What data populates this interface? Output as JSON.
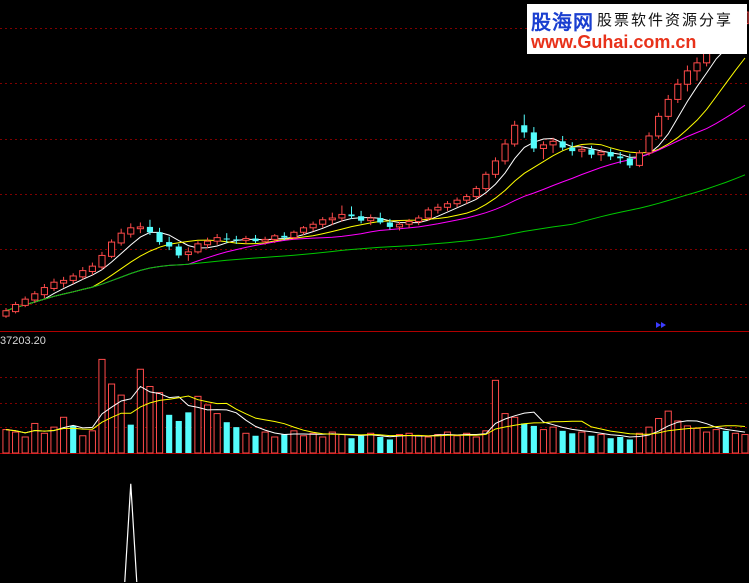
{
  "watermark": {
    "logo": "股海网",
    "slogan": "股票软件资源分享",
    "url": "www.Guhai.com.cn"
  },
  "volume_readout": "37203.20",
  "colors": {
    "background": "#000000",
    "up": "#ff4a4a",
    "down": "#54fcfc",
    "grid": "#800000",
    "ma_short": "#ffffff",
    "ma_mid": "#ffff00",
    "ma_long": "#ff00ff",
    "ma_longest": "#00c800",
    "indicator": "#ffffff"
  },
  "chart_data": [
    {
      "type": "candlestick",
      "title": "",
      "ohlc": [
        [
          5.0,
          5.9,
          4.8,
          5.6
        ],
        [
          5.5,
          6.6,
          5.3,
          6.3
        ],
        [
          6.2,
          7.2,
          6.0,
          6.9
        ],
        [
          6.8,
          7.8,
          6.5,
          7.5
        ],
        [
          7.4,
          8.6,
          7.0,
          8.2
        ],
        [
          8.1,
          9.2,
          7.8,
          8.8
        ],
        [
          8.7,
          9.4,
          8.2,
          9.0
        ],
        [
          9.0,
          9.8,
          8.6,
          9.5
        ],
        [
          9.4,
          10.5,
          9.1,
          10.1
        ],
        [
          10.0,
          11.0,
          9.6,
          10.6
        ],
        [
          10.5,
          12.2,
          10.2,
          11.8
        ],
        [
          11.7,
          13.6,
          11.5,
          13.3
        ],
        [
          13.2,
          14.8,
          12.9,
          14.3
        ],
        [
          14.2,
          15.4,
          13.8,
          14.9
        ],
        [
          14.8,
          15.5,
          14.3,
          15.0
        ],
        [
          15.0,
          15.8,
          14.1,
          14.4
        ],
        [
          14.4,
          14.9,
          13.0,
          13.3
        ],
        [
          13.3,
          13.9,
          12.4,
          12.8
        ],
        [
          12.8,
          13.1,
          11.5,
          11.8
        ],
        [
          11.9,
          12.7,
          11.2,
          12.2
        ],
        [
          12.2,
          13.4,
          12.0,
          13.1
        ],
        [
          13.0,
          13.8,
          12.6,
          13.4
        ],
        [
          13.4,
          14.2,
          13.0,
          13.8
        ],
        [
          13.7,
          14.3,
          13.2,
          13.6
        ],
        [
          13.6,
          14.0,
          13.1,
          13.5
        ],
        [
          13.5,
          14.0,
          13.1,
          13.7
        ],
        [
          13.7,
          14.1,
          13.2,
          13.4
        ],
        [
          13.4,
          13.9,
          13.0,
          13.6
        ],
        [
          13.6,
          14.2,
          13.2,
          14.0
        ],
        [
          14.0,
          14.4,
          13.5,
          13.8
        ],
        [
          13.8,
          14.6,
          13.6,
          14.4
        ],
        [
          14.4,
          15.1,
          14.1,
          14.9
        ],
        [
          14.9,
          15.6,
          14.5,
          15.3
        ],
        [
          15.3,
          16.1,
          14.9,
          15.8
        ],
        [
          15.8,
          16.6,
          15.2,
          16.0
        ],
        [
          16.0,
          17.4,
          15.6,
          16.4
        ],
        [
          16.4,
          17.3,
          15.9,
          16.2
        ],
        [
          16.2,
          16.8,
          15.4,
          15.7
        ],
        [
          15.7,
          16.4,
          15.2,
          16.0
        ],
        [
          16.0,
          16.6,
          15.3,
          15.5
        ],
        [
          15.5,
          15.9,
          14.7,
          15.0
        ],
        [
          15.0,
          15.6,
          14.6,
          15.3
        ],
        [
          15.3,
          15.9,
          14.9,
          15.6
        ],
        [
          15.6,
          16.3,
          15.2,
          16.0
        ],
        [
          16.0,
          17.2,
          15.7,
          16.9
        ],
        [
          16.9,
          17.6,
          16.5,
          17.2
        ],
        [
          17.2,
          17.9,
          16.8,
          17.6
        ],
        [
          17.6,
          18.3,
          17.2,
          18.0
        ],
        [
          18.0,
          18.7,
          17.6,
          18.4
        ],
        [
          18.4,
          19.6,
          18.1,
          19.3
        ],
        [
          19.3,
          21.2,
          19.0,
          20.9
        ],
        [
          20.9,
          22.8,
          20.5,
          22.4
        ],
        [
          22.4,
          24.8,
          22.0,
          24.3
        ],
        [
          24.3,
          26.9,
          24.0,
          26.4
        ],
        [
          26.4,
          27.6,
          25.0,
          25.6
        ],
        [
          25.6,
          26.2,
          23.4,
          23.8
        ],
        [
          23.8,
          24.6,
          22.6,
          24.2
        ],
        [
          24.2,
          25.0,
          23.3,
          24.6
        ],
        [
          24.6,
          25.2,
          23.6,
          23.9
        ],
        [
          23.9,
          24.5,
          23.0,
          23.5
        ],
        [
          23.5,
          24.1,
          22.8,
          23.7
        ],
        [
          23.7,
          24.1,
          22.7,
          23.1
        ],
        [
          23.1,
          23.7,
          22.4,
          23.4
        ],
        [
          23.4,
          23.8,
          22.5,
          22.9
        ],
        [
          22.9,
          23.4,
          22.1,
          22.7
        ],
        [
          22.7,
          23.2,
          21.6,
          21.9
        ],
        [
          21.9,
          23.6,
          21.7,
          23.3
        ],
        [
          23.3,
          25.6,
          23.0,
          25.2
        ],
        [
          25.2,
          27.8,
          24.9,
          27.4
        ],
        [
          27.4,
          29.8,
          27.0,
          29.3
        ],
        [
          29.3,
          31.6,
          28.9,
          31.0
        ],
        [
          31.0,
          33.1,
          30.2,
          32.5
        ],
        [
          32.5,
          34.0,
          31.4,
          33.4
        ],
        [
          33.4,
          35.6,
          33.0,
          35.1
        ],
        [
          35.1,
          37.8,
          34.6,
          37.2
        ],
        [
          37.2,
          39.0,
          36.0,
          36.6
        ],
        [
          36.6,
          38.2,
          35.4,
          37.8
        ],
        [
          37.8,
          39.6,
          37.1,
          39.1
        ]
      ],
      "moving_averages": [
        {
          "name": "",
          "window": 5
        },
        {
          "name": "",
          "window": 10
        },
        {
          "name": "",
          "window": 20
        },
        {
          "name": "",
          "window": 60
        }
      ],
      "y_range": [
        4,
        40
      ],
      "grid": true,
      "gridline_values": [
        6.3,
        12.5,
        18.7,
        24.9,
        31.1,
        37.3
      ]
    },
    {
      "type": "bar",
      "title": "",
      "values": [
        1.9,
        1.7,
        1.3,
        2.4,
        1.6,
        2.1,
        2.9,
        2.2,
        1.4,
        1.8,
        7.6,
        5.6,
        4.7,
        2.3,
        6.8,
        5.4,
        4.9,
        3.1,
        2.6,
        3.3,
        4.6,
        3.9,
        3.2,
        2.5,
        2.1,
        1.6,
        1.4,
        1.7,
        1.3,
        1.5,
        1.8,
        1.4,
        1.6,
        1.3,
        1.7,
        1.5,
        1.2,
        1.4,
        1.6,
        1.3,
        1.1,
        1.5,
        1.6,
        1.4,
        1.3,
        1.5,
        1.7,
        1.4,
        1.6,
        1.3,
        1.8,
        5.9,
        3.2,
        2.9,
        2.4,
        2.2,
        1.9,
        2.1,
        1.8,
        1.6,
        1.7,
        1.4,
        1.5,
        1.2,
        1.3,
        1.1,
        1.6,
        2.1,
        2.8,
        3.4,
        2.6,
        2.2,
        2.0,
        1.7,
        1.9,
        1.8,
        1.6,
        1.5
      ],
      "up": [
        true,
        true,
        true,
        true,
        true,
        true,
        true,
        false,
        true,
        true,
        true,
        true,
        true,
        false,
        true,
        true,
        true,
        false,
        false,
        false,
        true,
        true,
        true,
        false,
        false,
        true,
        false,
        true,
        true,
        false,
        true,
        true,
        true,
        true,
        true,
        true,
        false,
        false,
        true,
        false,
        false,
        true,
        true,
        true,
        true,
        true,
        true,
        true,
        true,
        true,
        true,
        true,
        true,
        true,
        false,
        false,
        true,
        true,
        false,
        false,
        true,
        false,
        true,
        false,
        false,
        false,
        true,
        true,
        true,
        true,
        true,
        true,
        true,
        true,
        true,
        false,
        true,
        true
      ],
      "moving_averages": [
        {
          "name": "",
          "window": 5
        },
        {
          "name": "",
          "window": 10
        }
      ],
      "y_range": [
        0,
        8.2
      ],
      "grid": true,
      "gridline_values": [
        2.1,
        4.1,
        6.2
      ]
    },
    {
      "type": "line",
      "title": "",
      "values": [
        0,
        0,
        0,
        0,
        0,
        0,
        0,
        0,
        0,
        0,
        0,
        0,
        0,
        0,
        0,
        0,
        0,
        0,
        0,
        0,
        0,
        0,
        0,
        0,
        0,
        0,
        0,
        0,
        0,
        0,
        0,
        0,
        0,
        0,
        0,
        0,
        0,
        0,
        0,
        0,
        0,
        0,
        0,
        0,
        0,
        0,
        0,
        0,
        0,
        0,
        0,
        0,
        0,
        0,
        0,
        0,
        0,
        0,
        0,
        0,
        0,
        0,
        0,
        0,
        0,
        0,
        0,
        0,
        0,
        0,
        0,
        0,
        0,
        0,
        0,
        0,
        0,
        0
      ],
      "spike": {
        "index": 13,
        "value": 1
      },
      "y_range": [
        0,
        1.1
      ],
      "grid": false
    }
  ]
}
